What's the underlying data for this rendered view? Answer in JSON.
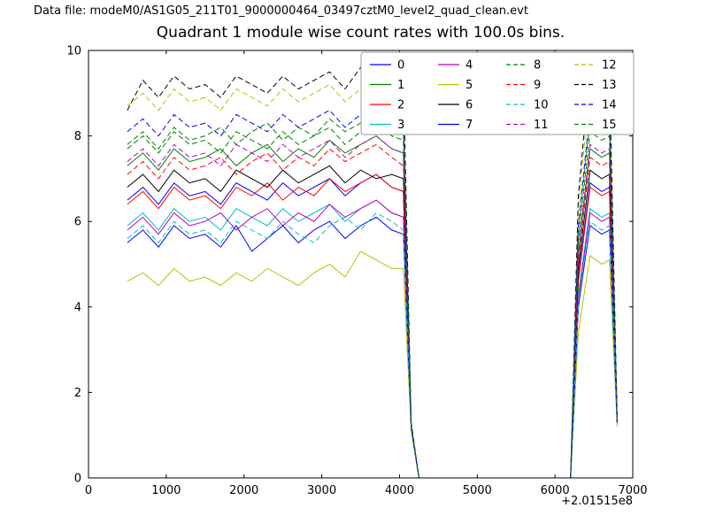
{
  "header": {
    "data_file_label": "Data file: modeM0/AS1G05_211T01_9000000464_03497cztM0_level2_quad_clean.evt"
  },
  "chart_data": {
    "type": "line",
    "title": "Quadrant 1 module wise count rates with 100.0s bins.",
    "xlabel": "",
    "ylabel": "",
    "x_offset": "+2.01515e8",
    "xlim": [
      0,
      7000
    ],
    "ylim": [
      0,
      10
    ],
    "x_ticks": [
      0,
      1000,
      2000,
      3000,
      4000,
      5000,
      6000,
      7000
    ],
    "y_ticks": [
      0,
      2,
      4,
      6,
      8,
      10
    ],
    "grid": false,
    "legend_position": "upper right",
    "legend_ncol": 4,
    "x": [
      500,
      700,
      900,
      1100,
      1300,
      1500,
      1700,
      1900,
      2100,
      2300,
      2500,
      2700,
      2900,
      3100,
      3300,
      3500,
      3700,
      3900,
      4050,
      4150,
      4250,
      6200,
      6300,
      6450,
      6600,
      6700,
      6800
    ],
    "series": [
      {
        "name": "0",
        "color": "#0000ff",
        "linestyle": "solid",
        "values": [
          6.5,
          6.8,
          6.4,
          6.9,
          6.6,
          6.7,
          6.4,
          6.9,
          6.7,
          6.5,
          6.9,
          6.6,
          6.8,
          7.0,
          6.6,
          6.9,
          7.1,
          6.8,
          6.7,
          1.2,
          0,
          0,
          4.7,
          6.9,
          6.7,
          6.8,
          1.3
        ]
      },
      {
        "name": "1",
        "color": "#007f00",
        "linestyle": "solid",
        "values": [
          7.3,
          7.6,
          7.2,
          7.7,
          7.4,
          7.5,
          7.7,
          7.3,
          7.6,
          7.8,
          7.4,
          7.7,
          7.5,
          7.9,
          7.6,
          7.8,
          8.0,
          7.7,
          7.6,
          1.2,
          0,
          0,
          5.2,
          7.7,
          7.5,
          7.6,
          1.3
        ]
      },
      {
        "name": "2",
        "color": "#ff0000",
        "linestyle": "solid",
        "values": [
          6.4,
          6.7,
          6.3,
          6.8,
          6.5,
          6.6,
          6.3,
          6.8,
          6.6,
          6.9,
          6.5,
          6.8,
          6.6,
          7.0,
          6.7,
          6.9,
          7.1,
          6.8,
          6.7,
          1.2,
          0,
          0,
          4.6,
          6.8,
          6.6,
          6.7,
          1.3
        ]
      },
      {
        "name": "3",
        "color": "#00bfbf",
        "linestyle": "solid",
        "values": [
          5.9,
          6.2,
          5.8,
          6.3,
          6.0,
          6.1,
          5.8,
          6.3,
          6.1,
          5.9,
          6.3,
          6.0,
          6.2,
          6.4,
          6.0,
          6.3,
          6.5,
          6.2,
          6.1,
          1.2,
          0,
          0,
          4.3,
          6.3,
          6.1,
          6.2,
          1.3
        ]
      },
      {
        "name": "4",
        "color": "#bf00bf",
        "linestyle": "solid",
        "values": [
          5.8,
          6.1,
          5.7,
          6.2,
          5.9,
          6.0,
          6.2,
          5.8,
          6.1,
          6.3,
          5.9,
          6.2,
          6.0,
          6.4,
          6.1,
          6.3,
          6.5,
          6.2,
          6.1,
          1.2,
          0,
          0,
          4.2,
          6.2,
          6.0,
          6.1,
          1.3
        ]
      },
      {
        "name": "5",
        "color": "#bfbf00",
        "linestyle": "solid",
        "values": [
          4.6,
          4.8,
          4.5,
          4.9,
          4.6,
          4.7,
          4.5,
          4.8,
          4.6,
          4.9,
          4.7,
          4.5,
          4.8,
          5.0,
          4.7,
          5.3,
          5.1,
          4.9,
          4.9,
          1.1,
          0,
          0,
          3.4,
          5.2,
          5.0,
          5.1,
          1.2
        ]
      },
      {
        "name": "6",
        "color": "#000000",
        "linestyle": "solid",
        "values": [
          6.8,
          7.1,
          6.7,
          7.2,
          6.9,
          7.0,
          6.7,
          7.2,
          7.0,
          6.8,
          7.2,
          6.9,
          7.1,
          7.3,
          6.9,
          7.2,
          7.0,
          7.1,
          7.0,
          1.2,
          0,
          0,
          4.9,
          7.2,
          7.0,
          7.1,
          1.3
        ]
      },
      {
        "name": "7",
        "color": "#0000ff",
        "linestyle": "solid",
        "values": [
          5.5,
          5.8,
          5.4,
          5.9,
          5.6,
          5.7,
          5.4,
          5.9,
          5.3,
          5.6,
          5.9,
          5.5,
          5.8,
          6.0,
          5.6,
          5.9,
          6.1,
          5.8,
          5.7,
          1.2,
          0,
          0,
          4.0,
          5.9,
          5.7,
          5.8,
          1.3
        ]
      },
      {
        "name": "8",
        "color": "#007f00",
        "linestyle": "dashed",
        "values": [
          7.7,
          8.0,
          7.6,
          8.1,
          7.8,
          7.9,
          7.6,
          8.1,
          7.9,
          7.7,
          8.1,
          7.8,
          8.0,
          8.2,
          7.8,
          8.1,
          8.3,
          8.0,
          7.9,
          1.2,
          0,
          0,
          5.5,
          8.1,
          7.9,
          8.0,
          1.3
        ]
      },
      {
        "name": "9",
        "color": "#ff0000",
        "linestyle": "dashed",
        "values": [
          7.1,
          7.4,
          7.0,
          7.5,
          7.2,
          7.3,
          7.5,
          7.1,
          7.4,
          7.6,
          7.2,
          7.5,
          7.3,
          7.7,
          7.4,
          7.6,
          7.8,
          7.5,
          7.3,
          1.2,
          0,
          0,
          5.1,
          7.5,
          7.3,
          7.4,
          1.3
        ]
      },
      {
        "name": "10",
        "color": "#00bfbf",
        "linestyle": "dashed",
        "values": [
          5.6,
          5.9,
          5.5,
          6.0,
          5.7,
          5.8,
          5.5,
          6.0,
          5.8,
          5.6,
          6.0,
          5.7,
          5.5,
          5.9,
          6.1,
          5.8,
          6.2,
          6.0,
          5.8,
          1.2,
          0,
          0,
          4.1,
          6.0,
          5.8,
          5.9,
          1.3
        ]
      },
      {
        "name": "11",
        "color": "#bf00bf",
        "linestyle": "dashed",
        "values": [
          7.4,
          7.7,
          7.3,
          7.8,
          7.5,
          7.6,
          7.3,
          7.8,
          7.6,
          7.4,
          7.8,
          7.5,
          7.7,
          7.9,
          7.5,
          7.8,
          8.0,
          7.7,
          7.6,
          1.2,
          0,
          0,
          5.3,
          7.8,
          7.6,
          7.7,
          1.3
        ]
      },
      {
        "name": "12",
        "color": "#bfbf00",
        "linestyle": "dashed",
        "values": [
          8.7,
          9.0,
          8.6,
          9.1,
          8.8,
          8.9,
          8.6,
          9.1,
          8.9,
          8.7,
          9.1,
          8.8,
          9.0,
          9.2,
          8.8,
          9.1,
          9.3,
          9.0,
          9.0,
          1.3,
          0,
          0,
          6.3,
          9.2,
          9.0,
          9.1,
          1.4
        ]
      },
      {
        "name": "13",
        "color": "#000000",
        "linestyle": "dashed",
        "values": [
          8.6,
          9.3,
          8.9,
          9.4,
          9.1,
          9.2,
          8.9,
          9.4,
          9.2,
          9.0,
          9.4,
          9.1,
          9.3,
          9.5,
          9.1,
          9.6,
          9.7,
          9.4,
          9.4,
          1.3,
          0,
          0,
          6.6,
          9.6,
          9.4,
          9.5,
          1.4
        ]
      },
      {
        "name": "14",
        "color": "#0000ff",
        "linestyle": "dashed",
        "values": [
          8.1,
          8.4,
          8.0,
          8.5,
          8.2,
          8.3,
          8.0,
          8.5,
          8.3,
          8.1,
          8.5,
          8.2,
          8.4,
          8.6,
          8.2,
          8.5,
          8.7,
          8.4,
          8.3,
          1.2,
          0,
          0,
          5.9,
          8.6,
          8.4,
          8.5,
          1.3
        ]
      },
      {
        "name": "15",
        "color": "#007f00",
        "linestyle": "dashed",
        "values": [
          7.8,
          8.1,
          7.7,
          8.2,
          7.9,
          8.0,
          8.2,
          7.8,
          8.1,
          8.3,
          7.9,
          8.2,
          8.0,
          8.4,
          8.1,
          8.3,
          8.5,
          8.2,
          8.1,
          1.2,
          0,
          0,
          5.7,
          8.4,
          8.2,
          8.3,
          1.3
        ]
      }
    ]
  }
}
